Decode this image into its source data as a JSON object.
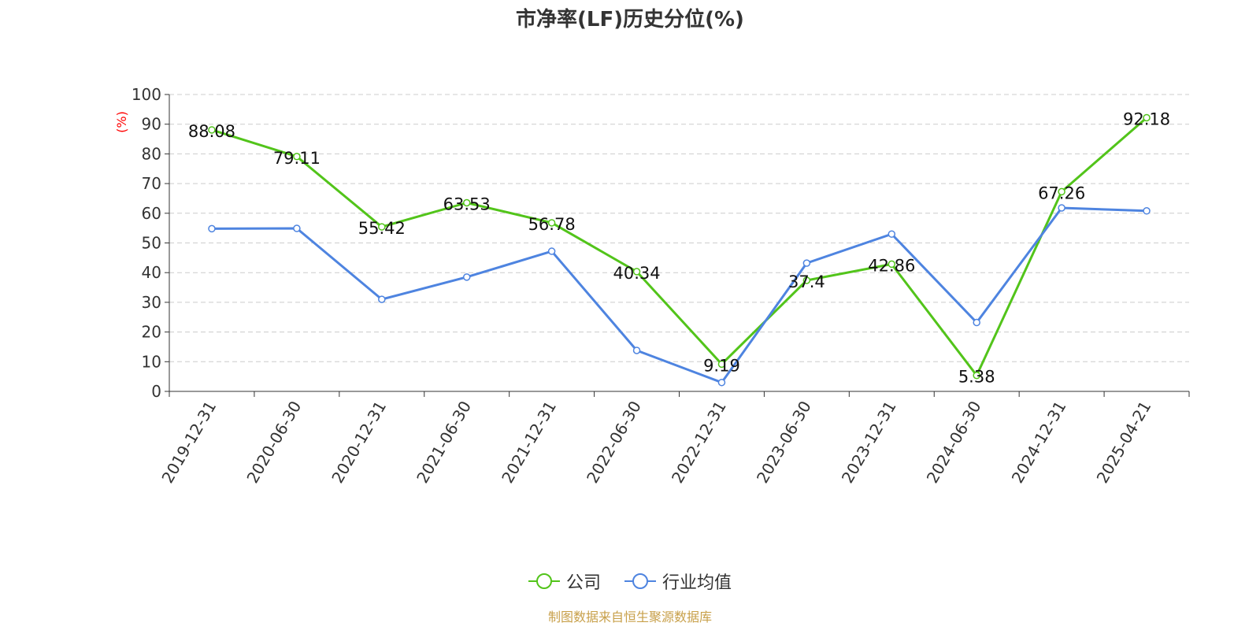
{
  "chart_data": {
    "type": "line",
    "title": "市净率(LF)历史分位(%)",
    "ylabel": "(%)",
    "xlabel": "",
    "ylim": [
      0,
      100
    ],
    "yticks": [
      0,
      10,
      20,
      30,
      40,
      50,
      60,
      70,
      80,
      90,
      100
    ],
    "grid": true,
    "legend_position": "bottom",
    "categories": [
      "2019-12-31",
      "2020-06-30",
      "2020-12-31",
      "2021-06-30",
      "2021-12-31",
      "2022-06-30",
      "2022-12-31",
      "2023-06-30",
      "2023-12-31",
      "2024-06-30",
      "2024-12-31",
      "2025-04-21"
    ],
    "series": [
      {
        "name": "公司",
        "color": "#52c41a",
        "values": [
          88.08,
          79.11,
          55.42,
          63.53,
          56.78,
          40.34,
          9.19,
          37.4,
          42.86,
          5.38,
          67.26,
          92.18
        ],
        "labels": [
          "88.08",
          "79.11",
          "55.42",
          "63.53",
          "56.78",
          "40.34",
          "9.19",
          "37.4",
          "42.86",
          "5.38",
          "67.26",
          "92.18"
        ]
      },
      {
        "name": "行业均值",
        "color": "#4e84e0",
        "values": [
          54.8,
          54.9,
          31.0,
          38.5,
          47.2,
          13.8,
          3.0,
          43.2,
          53.0,
          23.2,
          61.8,
          60.8
        ]
      }
    ]
  },
  "source_text": "制图数据来自恒生聚源数据库",
  "colors": {
    "source": "#c8a04a",
    "ylabel": "#ff0000",
    "grid": "#cccccc",
    "axis": "#333333"
  }
}
